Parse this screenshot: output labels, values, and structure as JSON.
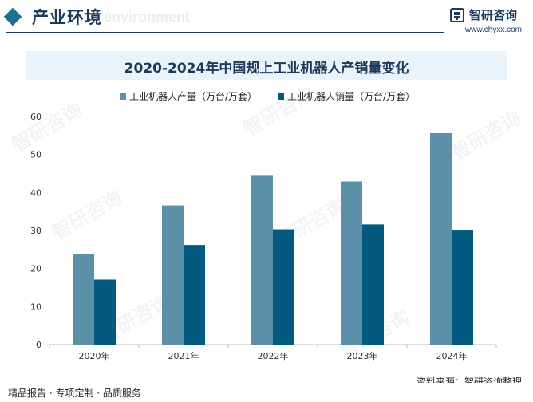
{
  "header": {
    "section_title": "产业环境",
    "section_subtitle": "environment",
    "brand_name": "智研咨询",
    "brand_url": "www.chyxx.com"
  },
  "watermark": "智研咨询",
  "colors": {
    "production": "#5b90a8",
    "sales": "#04597f",
    "navy": "#1b3a5c"
  },
  "chart_data": {
    "type": "bar",
    "title": "2020-2024年中国规上工业机器人产销量变化",
    "categories": [
      "2020年",
      "2021年",
      "2022年",
      "2023年",
      "2024年"
    ],
    "series": [
      {
        "name": "工业机器人产量（万台/万套）",
        "values": [
          23.7,
          36.6,
          44.4,
          42.9,
          55.6
        ]
      },
      {
        "name": "工业机器人销量（万台/万套）",
        "values": [
          17.1,
          26.2,
          30.3,
          31.6,
          30.2
        ]
      }
    ],
    "yticks": [
      0,
      10,
      20,
      30,
      40,
      50,
      60
    ],
    "ylim": [
      0,
      60
    ],
    "xlabel": "",
    "ylabel": "",
    "grid": false,
    "legend_position": "top"
  },
  "footer": {
    "left_text": "精品报告 · 专项定制 · 品质服务",
    "right_text": "资料来源：智研咨询整理"
  }
}
